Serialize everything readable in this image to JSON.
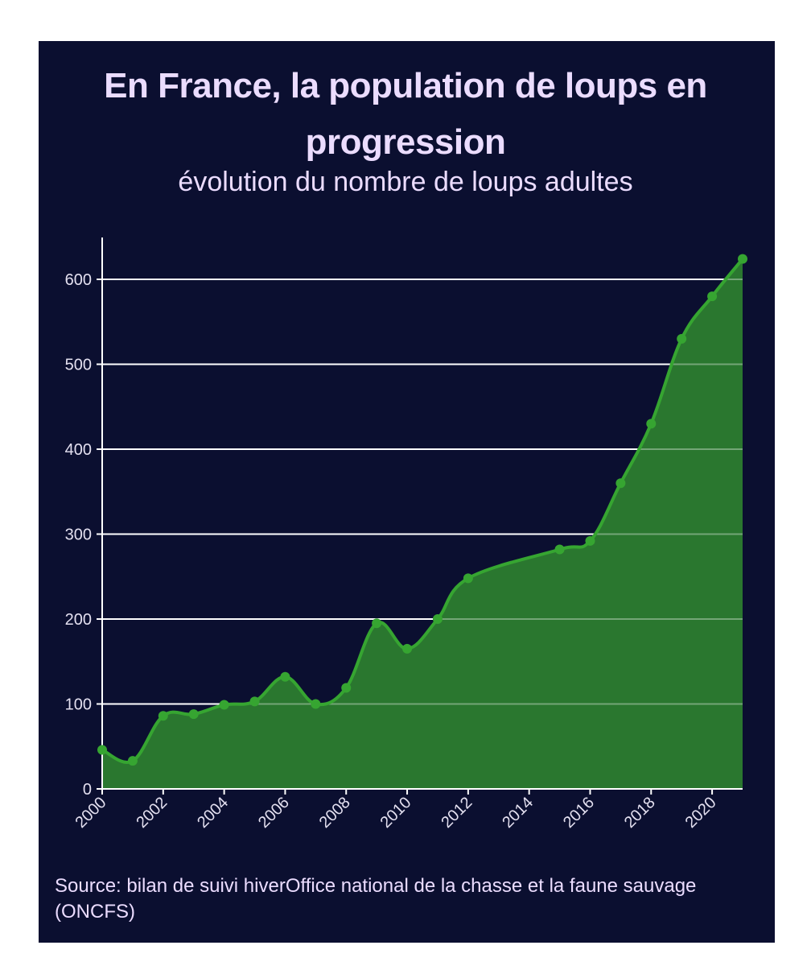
{
  "title": "En France, la population de loups en progression",
  "subtitle": "évolution du nombre de loups adultes",
  "source": "Source: bilan de suivi hiverOffice national de la chasse et la faune sauvage (ONCFS)",
  "colors": {
    "background": "#0b0f30",
    "text": "#ebdcff",
    "area_fill": "#2a772f",
    "line": "#36a531",
    "grid": "#ffffff"
  },
  "chart_data": {
    "type": "area",
    "title": "En France, la population de loups en progression",
    "subtitle": "évolution du nombre de loups adultes",
    "xlabel": "",
    "ylabel": "",
    "x": [
      2000,
      2001,
      2002,
      2003,
      2004,
      2005,
      2006,
      2007,
      2008,
      2009,
      2010,
      2011,
      2012,
      2015,
      2016,
      2017,
      2018,
      2019,
      2020,
      2021
    ],
    "values": [
      46,
      33,
      86,
      88,
      99,
      103,
      132,
      100,
      119,
      195,
      165,
      200,
      248,
      282,
      292,
      360,
      430,
      530,
      580,
      624
    ],
    "xlim": [
      2000,
      2021
    ],
    "ylim": [
      0,
      650
    ],
    "y_ticks": [
      "0",
      "100",
      "200",
      "300",
      "400",
      "500",
      "600"
    ],
    "x_ticks": [
      "2000",
      "2002",
      "2004",
      "2006",
      "2008",
      "2010",
      "2012",
      "2014",
      "2016",
      "2018",
      "2020"
    ],
    "grid": true,
    "legend": "none"
  }
}
